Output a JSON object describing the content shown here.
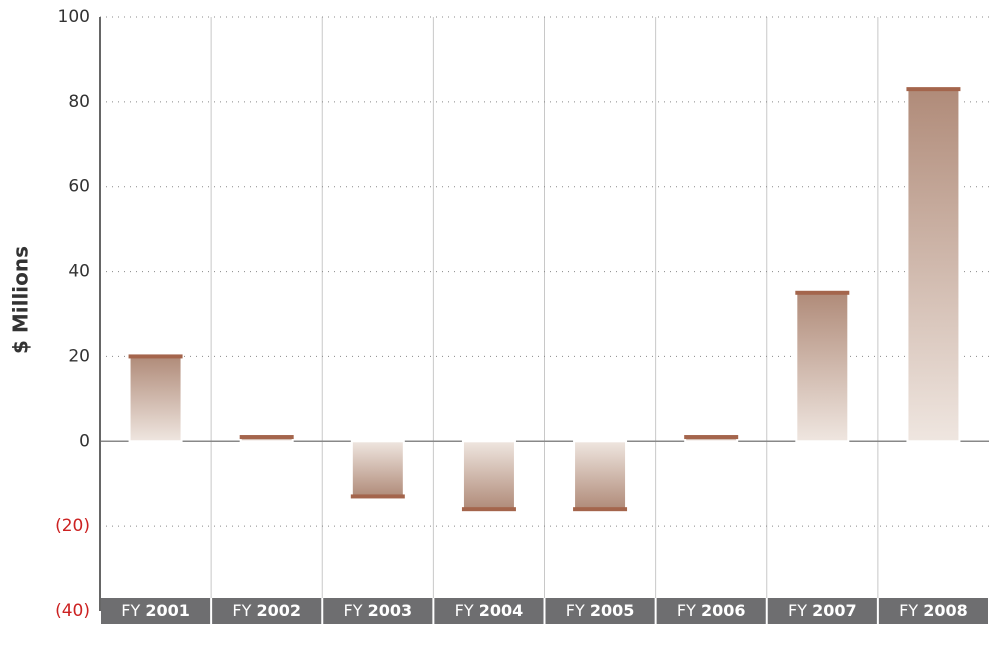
{
  "chart_data": {
    "type": "bar",
    "y_label": "$ Millions",
    "categories": [
      "FY 2001",
      "FY 2002",
      "FY 2003",
      "FY 2004",
      "FY 2005",
      "FY 2006",
      "FY 2007",
      "FY 2008"
    ],
    "values": [
      20,
      1,
      -13,
      -16,
      -16,
      1,
      35,
      83
    ],
    "color": "#b08b79",
    "cap_color": "#a4654c",
    "negative_tick_color": "#cc2222",
    "ylim": [
      -40,
      100
    ],
    "yticks": [
      {
        "value": -40,
        "label": "(40)"
      },
      {
        "value": -20,
        "label": "(20)"
      },
      0,
      20,
      40,
      60,
      80,
      100
    ],
    "grid": true
  }
}
